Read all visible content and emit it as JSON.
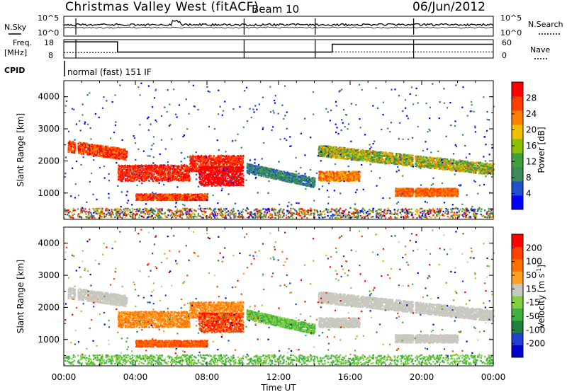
{
  "header": {
    "title": "Christmas Valley West (fitACF)",
    "beam": "Beam 10",
    "date": "06/Jun/2012"
  },
  "noise_panel": {
    "left_label": "N.Sky",
    "right_label": "N.Search",
    "left_ticks": [
      "10^5",
      "10^0"
    ],
    "right_ticks": [
      "10^5",
      "10^0"
    ]
  },
  "freq_panel": {
    "left_label_1": "Freq.",
    "left_label_2": "[MHz]",
    "right_label": "Nave",
    "left_ticks": [
      "18",
      "8"
    ],
    "right_ticks": [
      "60",
      "0"
    ]
  },
  "cpid_panel": {
    "label": "CPID",
    "text": "normal (fast) 151 IF"
  },
  "x_axis": {
    "ticks": [
      "00:00",
      "04:00",
      "08:00",
      "12:00",
      "16:00",
      "20:00",
      "00:00"
    ],
    "label": "Time UT"
  },
  "power_panel": {
    "ylabel": "Slant Range [km]",
    "yticks": [
      "4000",
      "3000",
      "2000",
      "1000"
    ],
    "colorbar_label": "Power [dB]",
    "colorbar_ticks": [
      "28",
      "24",
      "20",
      "16",
      "12",
      "8",
      "4"
    ],
    "colors": [
      "#0000ff",
      "#2050d0",
      "#3a8a5a",
      "#40a040",
      "#8cc000",
      "#f0c000",
      "#ff8000",
      "#ff4000",
      "#ff0000"
    ]
  },
  "velocity_panel": {
    "ylabel": "Slant Range [km]",
    "yticks": [
      "4000",
      "3000",
      "2000",
      "1000"
    ],
    "colorbar_label": "Velocity [m s",
    "colorbar_label_sup": "-1",
    "colorbar_label_end": "]",
    "colorbar_ticks": [
      "200",
      "100",
      "50",
      "15",
      "-15",
      "-50",
      "-100",
      "-200"
    ],
    "colors": [
      "#0000cc",
      "#2040d0",
      "#208040",
      "#40b040",
      "#80d040",
      "#c8c8c0",
      "#ffa020",
      "#ff7000",
      "#ff4000",
      "#ff0000"
    ]
  },
  "chart_data": {
    "type": "heatmap",
    "x_range_hours": [
      0,
      24
    ],
    "y_range_km": [
      180,
      4500
    ],
    "series": [
      {
        "name": "Power [dB]",
        "range": [
          0,
          30
        ]
      },
      {
        "name": "Velocity [m s-1]",
        "range": [
          -200,
          200
        ]
      }
    ]
  }
}
